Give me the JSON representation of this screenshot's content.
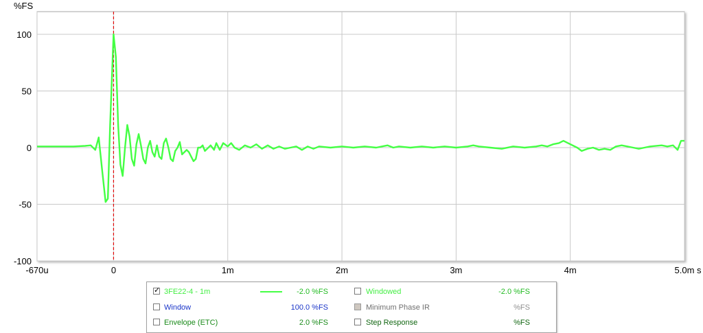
{
  "chart_data": {
    "type": "line",
    "ylabel": "%FS",
    "xlabel": "",
    "x_unit_suffix": "s",
    "xlim": [
      -0.67,
      5.0
    ],
    "ylim": [
      -100,
      120
    ],
    "y_ticks": [
      {
        "value": 100,
        "label": "100"
      },
      {
        "value": 50,
        "label": "50"
      },
      {
        "value": 0,
        "label": "0"
      },
      {
        "value": -50,
        "label": "-50"
      },
      {
        "value": -100,
        "label": "-100"
      }
    ],
    "x_ticks": [
      {
        "value": -0.67,
        "label": "-670u"
      },
      {
        "value": 0,
        "label": "0"
      },
      {
        "value": 1,
        "label": "1m"
      },
      {
        "value": 2,
        "label": "2m"
      },
      {
        "value": 3,
        "label": "3m"
      },
      {
        "value": 4,
        "label": "4m"
      },
      {
        "value": 5,
        "label": "5.0m"
      }
    ],
    "grid": true,
    "marker_x": 0,
    "marker_color": "#e00000",
    "series": [
      {
        "name": "3FE22-4 - 1m",
        "color": "#44ff44",
        "x_unit": "ms",
        "points": [
          [
            -0.67,
            1
          ],
          [
            -0.5,
            1
          ],
          [
            -0.35,
            1
          ],
          [
            -0.25,
            1.5
          ],
          [
            -0.2,
            2
          ],
          [
            -0.16,
            -2
          ],
          [
            -0.13,
            9
          ],
          [
            -0.1,
            -20
          ],
          [
            -0.07,
            -48
          ],
          [
            -0.05,
            -45
          ],
          [
            -0.03,
            20
          ],
          [
            0.0,
            100
          ],
          [
            0.02,
            80
          ],
          [
            0.04,
            20
          ],
          [
            0.06,
            -15
          ],
          [
            0.08,
            -25
          ],
          [
            0.1,
            0
          ],
          [
            0.12,
            20
          ],
          [
            0.14,
            10
          ],
          [
            0.16,
            -10
          ],
          [
            0.18,
            -16
          ],
          [
            0.2,
            3
          ],
          [
            0.22,
            12
          ],
          [
            0.24,
            2
          ],
          [
            0.26,
            -10
          ],
          [
            0.28,
            -14
          ],
          [
            0.3,
            0
          ],
          [
            0.32,
            6
          ],
          [
            0.34,
            -4
          ],
          [
            0.36,
            -8
          ],
          [
            0.38,
            2
          ],
          [
            0.4,
            -8
          ],
          [
            0.42,
            -10
          ],
          [
            0.44,
            4
          ],
          [
            0.46,
            8
          ],
          [
            0.48,
            0
          ],
          [
            0.5,
            -10
          ],
          [
            0.52,
            -12
          ],
          [
            0.54,
            -3
          ],
          [
            0.56,
            0
          ],
          [
            0.58,
            5
          ],
          [
            0.6,
            -6
          ],
          [
            0.62,
            -4
          ],
          [
            0.64,
            -2
          ],
          [
            0.66,
            -4
          ],
          [
            0.68,
            -8
          ],
          [
            0.7,
            -12
          ],
          [
            0.72,
            -10
          ],
          [
            0.74,
            0
          ],
          [
            0.76,
            0
          ],
          [
            0.78,
            2
          ],
          [
            0.8,
            -3
          ],
          [
            0.82,
            -1
          ],
          [
            0.85,
            2
          ],
          [
            0.88,
            -2
          ],
          [
            0.9,
            4
          ],
          [
            0.93,
            -2
          ],
          [
            0.96,
            4
          ],
          [
            1.0,
            1
          ],
          [
            1.03,
            4
          ],
          [
            1.06,
            0
          ],
          [
            1.1,
            -2
          ],
          [
            1.15,
            2
          ],
          [
            1.2,
            0
          ],
          [
            1.25,
            3
          ],
          [
            1.3,
            -1
          ],
          [
            1.35,
            2
          ],
          [
            1.4,
            -1
          ],
          [
            1.45,
            1
          ],
          [
            1.5,
            -1
          ],
          [
            1.55,
            0
          ],
          [
            1.6,
            1
          ],
          [
            1.65,
            -2
          ],
          [
            1.7,
            1
          ],
          [
            1.75,
            -1
          ],
          [
            1.8,
            1
          ],
          [
            1.9,
            0
          ],
          [
            2.0,
            1
          ],
          [
            2.1,
            0
          ],
          [
            2.2,
            1
          ],
          [
            2.3,
            0
          ],
          [
            2.35,
            1
          ],
          [
            2.4,
            2
          ],
          [
            2.45,
            0
          ],
          [
            2.5,
            1
          ],
          [
            2.6,
            0
          ],
          [
            2.7,
            1
          ],
          [
            2.8,
            0
          ],
          [
            2.9,
            1
          ],
          [
            3.0,
            0
          ],
          [
            3.1,
            1
          ],
          [
            3.15,
            2
          ],
          [
            3.2,
            1
          ],
          [
            3.3,
            0
          ],
          [
            3.4,
            -1
          ],
          [
            3.5,
            1
          ],
          [
            3.6,
            0
          ],
          [
            3.7,
            1
          ],
          [
            3.75,
            2
          ],
          [
            3.8,
            1
          ],
          [
            3.85,
            3
          ],
          [
            3.9,
            4
          ],
          [
            3.94,
            6
          ],
          [
            3.98,
            4
          ],
          [
            4.02,
            2
          ],
          [
            4.06,
            0
          ],
          [
            4.1,
            -3
          ],
          [
            4.15,
            -1
          ],
          [
            4.2,
            0
          ],
          [
            4.25,
            -2
          ],
          [
            4.3,
            -1
          ],
          [
            4.35,
            -2
          ],
          [
            4.4,
            1
          ],
          [
            4.45,
            2
          ],
          [
            4.5,
            1
          ],
          [
            4.55,
            0
          ],
          [
            4.6,
            -1
          ],
          [
            4.65,
            0
          ],
          [
            4.7,
            1
          ],
          [
            4.8,
            2
          ],
          [
            4.85,
            1
          ],
          [
            4.9,
            2
          ],
          [
            4.94,
            -2
          ],
          [
            4.97,
            6
          ],
          [
            5.0,
            6
          ]
        ]
      }
    ]
  },
  "legend": {
    "rows": [
      {
        "left": {
          "label": "3FE22-4 - 1m",
          "checked": true,
          "disabled": false,
          "color": "#44ee44",
          "swatch": "#44ff44",
          "value": "-2.0 %FS",
          "value_color": "#22bb22"
        },
        "right": {
          "label": "Windowed",
          "checked": false,
          "disabled": false,
          "color": "#44ee44",
          "value": "-2.0 %FS",
          "value_color": "#22bb22"
        }
      },
      {
        "left": {
          "label": "Window",
          "checked": false,
          "disabled": false,
          "color": "#1a35c8",
          "value": "100.0 %FS",
          "value_color": "#1a35c8"
        },
        "right": {
          "label": "Minimum Phase IR",
          "checked": false,
          "disabled": true,
          "color": "#707070",
          "value": "%FS",
          "value_color": "#909090"
        }
      },
      {
        "left": {
          "label": "Envelope (ETC)",
          "checked": false,
          "disabled": false,
          "color": "#1a8a1a",
          "value": "2.0 %FS",
          "value_color": "#1a8a1a"
        },
        "right": {
          "label": "Step Response",
          "checked": false,
          "disabled": false,
          "color": "#116611",
          "value": "%FS",
          "value_color": "#116611"
        }
      }
    ]
  }
}
